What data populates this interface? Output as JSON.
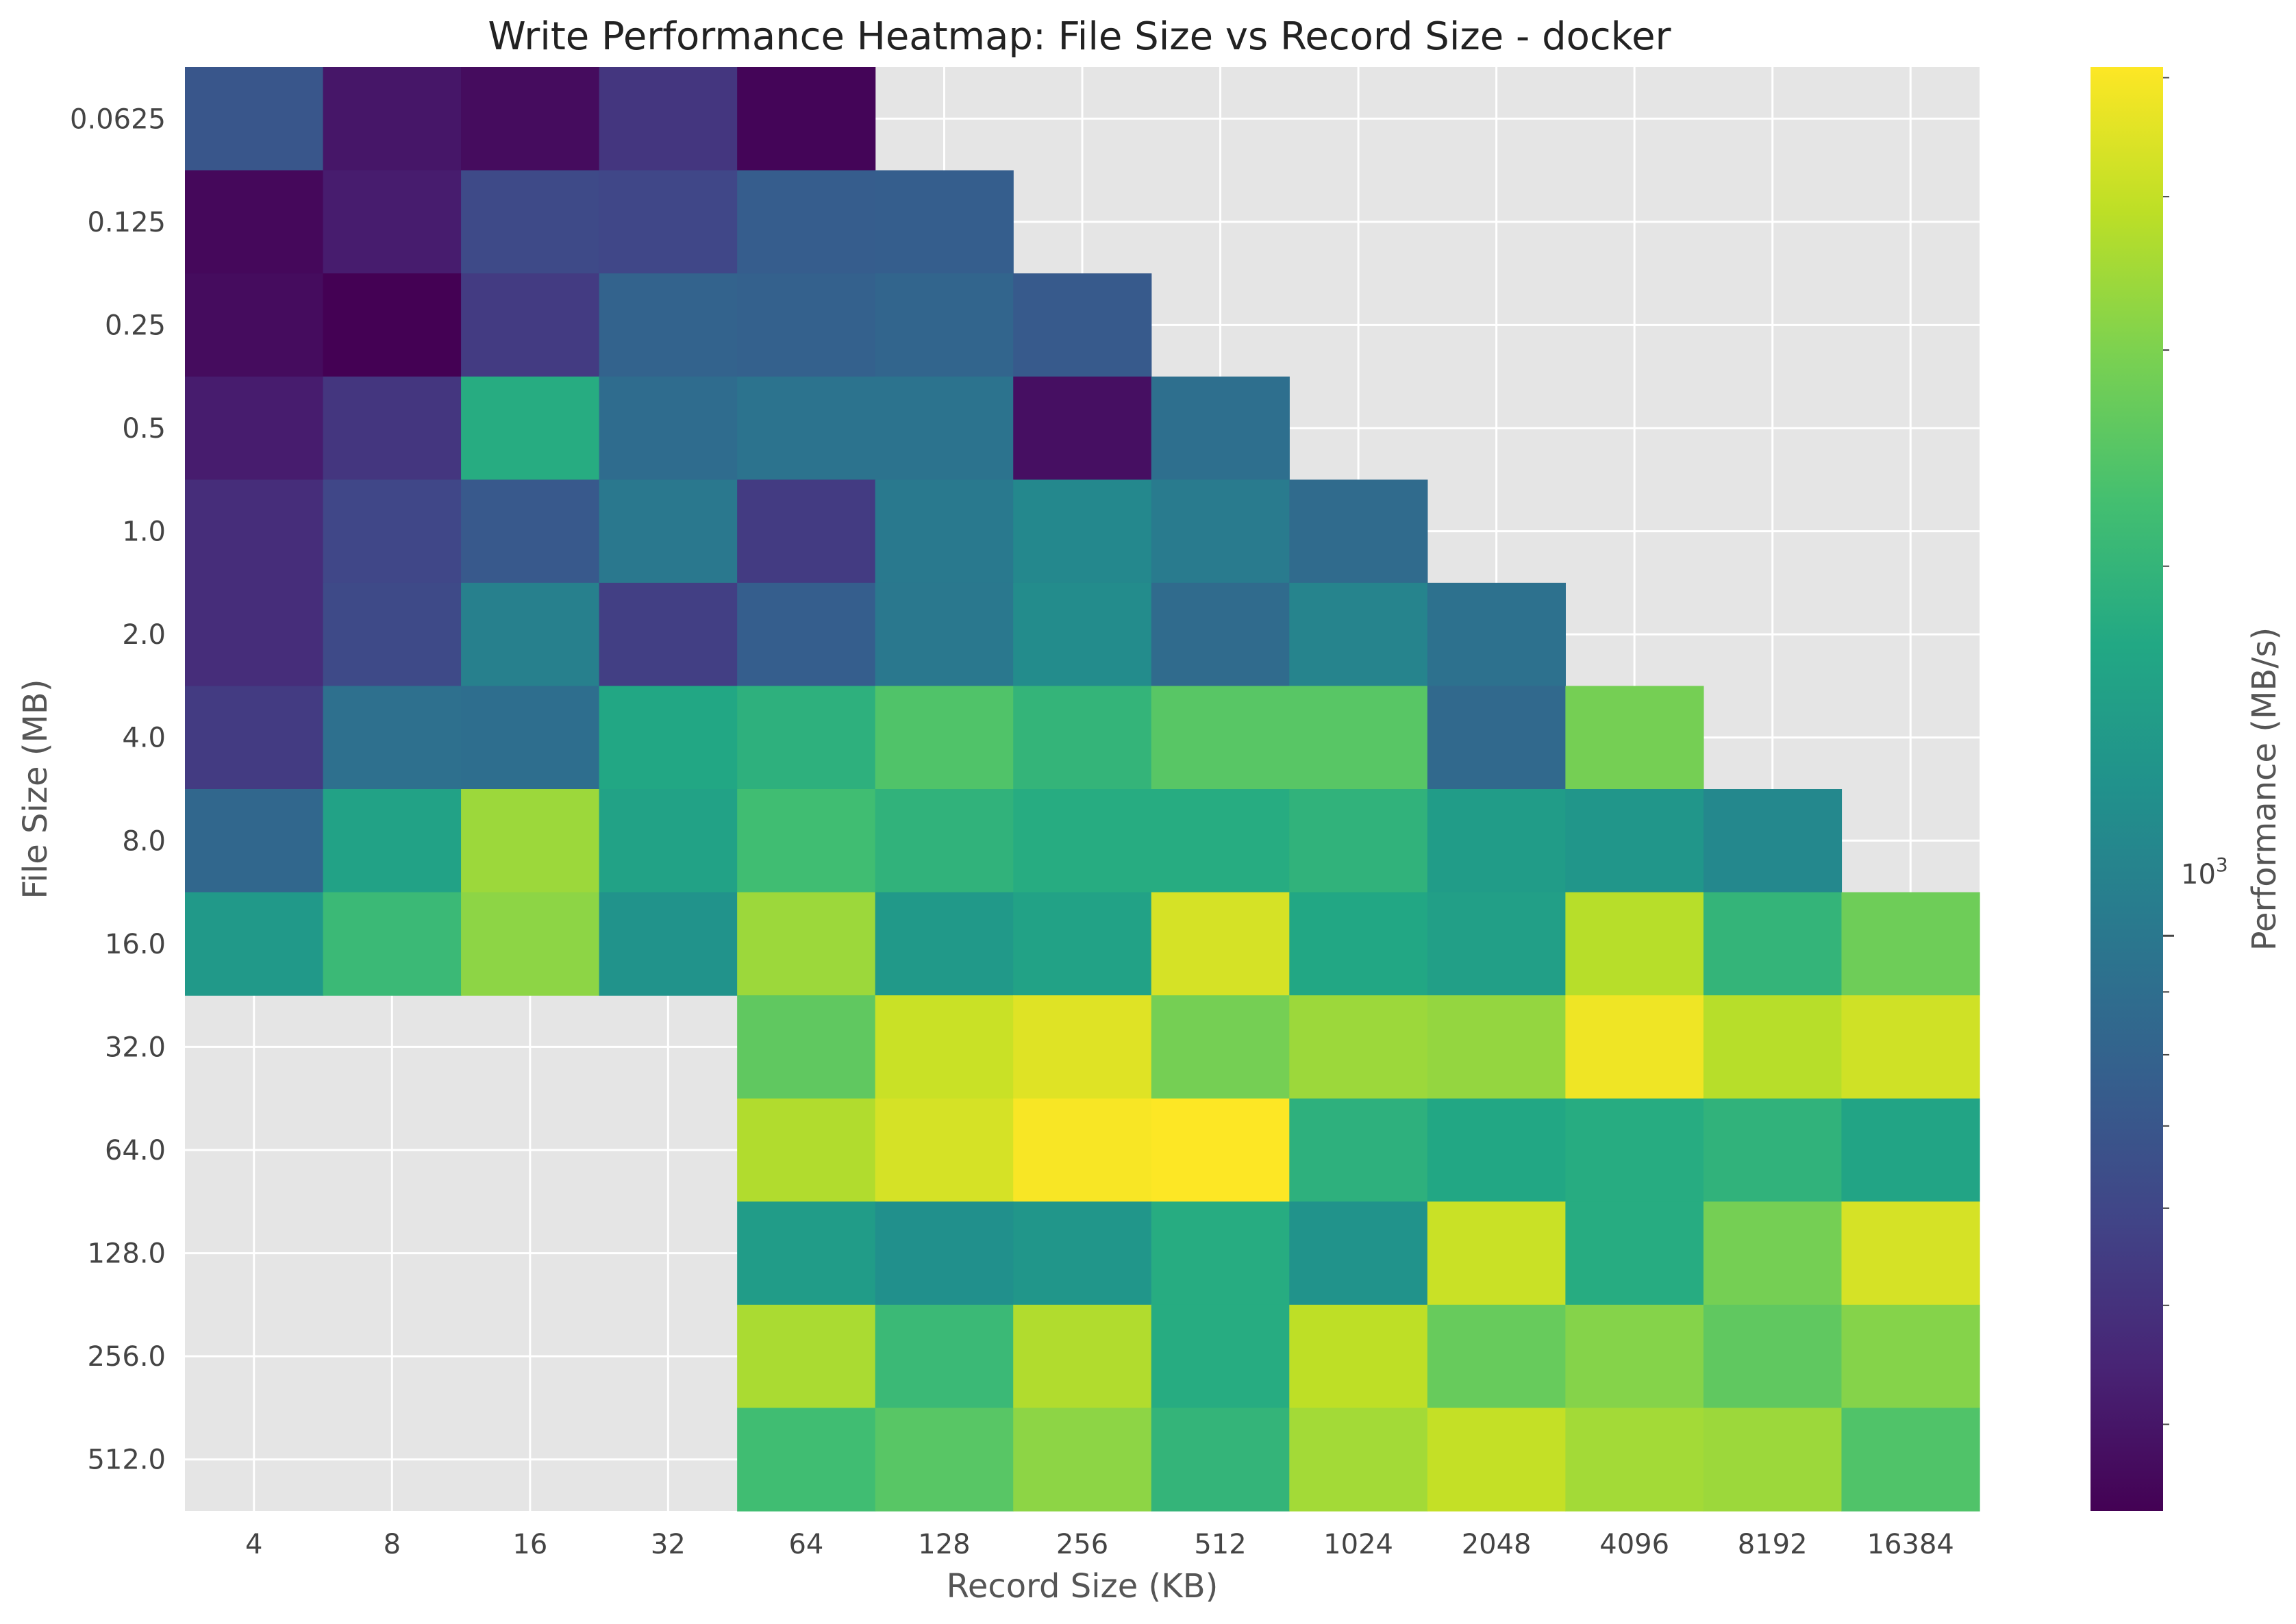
{
  "chart_data": {
    "type": "heatmap",
    "title": "Write Performance Heatmap: File Size vs Record Size - docker",
    "xlabel": "Record Size (KB)",
    "ylabel": "File Size (MB)",
    "x_categories": [
      "4",
      "8",
      "16",
      "32",
      "64",
      "128",
      "256",
      "512",
      "1024",
      "2048",
      "4096",
      "8192",
      "16384"
    ],
    "y_categories": [
      "0.0625",
      "0.125",
      "0.25",
      "0.5",
      "1.0",
      "2.0",
      "4.0",
      "8.0",
      "16.0",
      "32.0",
      "64.0",
      "128.0",
      "256.0",
      "512.0"
    ],
    "values_mbs": [
      [
        700,
        400,
        370,
        520,
        350,
        null,
        null,
        null,
        null,
        null,
        null,
        null,
        null
      ],
      [
        360,
        420,
        620,
        600,
        750,
        760,
        null,
        null,
        null,
        null,
        null,
        null,
        null
      ],
      [
        370,
        340,
        540,
        800,
        780,
        820,
        730,
        null,
        null,
        null,
        null,
        null,
        null
      ],
      [
        420,
        520,
        1800,
        880,
        950,
        950,
        380,
        910,
        null,
        null,
        null,
        null,
        null
      ],
      [
        480,
        600,
        720,
        1000,
        540,
        1020,
        1200,
        1040,
        870,
        null,
        null,
        null,
        null
      ],
      [
        480,
        620,
        1100,
        560,
        760,
        1000,
        1250,
        870,
        1150,
        930,
        null,
        null,
        null
      ],
      [
        540,
        920,
        900,
        1700,
        1900,
        2400,
        2000,
        2500,
        2500,
        850,
        2900,
        null,
        null
      ],
      [
        840,
        1600,
        3400,
        1600,
        2200,
        1950,
        1800,
        1800,
        1950,
        1500,
        1400,
        1200,
        null
      ],
      [
        1450,
        2100,
        3200,
        1350,
        3400,
        1450,
        1600,
        4300,
        1700,
        1550,
        3800,
        2000,
        2800
      ],
      [
        null,
        null,
        null,
        null,
        2600,
        4100,
        4500,
        2900,
        3400,
        3300,
        4800,
        3800,
        4200
      ],
      [
        null,
        null,
        null,
        null,
        3700,
        4300,
        5000,
        5100,
        1900,
        1700,
        1800,
        1950,
        1650
      ],
      [
        null,
        null,
        null,
        null,
        1500,
        1300,
        1400,
        1800,
        1350,
        4100,
        1800,
        2900,
        4300
      ],
      [
        null,
        null,
        null,
        null,
        3600,
        2100,
        3700,
        1800,
        3900,
        2700,
        3100,
        2600,
        3100
      ],
      [
        null,
        null,
        null,
        null,
        2200,
        2500,
        3200,
        2000,
        3500,
        4000,
        3500,
        3400,
        2400
      ]
    ],
    "colorbar": {
      "label": "Performance (MB/s)",
      "scale": "log",
      "tick_label": "10",
      "tick_label_exp": "3",
      "vmin": 340,
      "vmax": 5100,
      "colormap": "viridis"
    },
    "colors": {
      "missing_cell": "#e5e5e5",
      "grid": "#ffffff"
    },
    "grid": true
  }
}
